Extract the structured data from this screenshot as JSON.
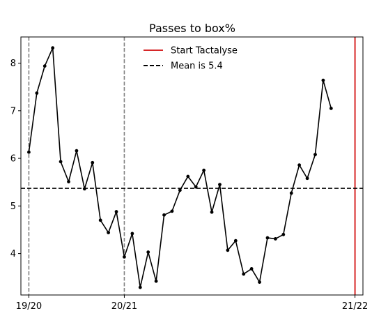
{
  "chart_data": {
    "type": "line",
    "title": "Passes to box%",
    "xlabel": "",
    "ylabel": "",
    "ylim": [
      3.13,
      8.55
    ],
    "xlim": [
      -1,
      42
    ],
    "yticks": [
      4,
      5,
      6,
      7,
      8
    ],
    "xticks": [
      {
        "x": 0,
        "label": "19/20"
      },
      {
        "x": 12,
        "label": "20/21"
      },
      {
        "x": 41,
        "label": "21/22"
      }
    ],
    "season_markers": [
      0,
      12
    ],
    "start_marker": 41,
    "mean": 5.37,
    "colors": {
      "line": "#000000",
      "mean": "#000000",
      "season": "#808080",
      "start": "#d62728"
    },
    "legend": {
      "placement": "top-center",
      "entries": [
        {
          "label": "Start Tactalyse",
          "style": "solid",
          "color": "#d62728"
        },
        {
          "label": "Mean is 5.4",
          "style": "dashed",
          "color": "#000000"
        }
      ]
    },
    "series": [
      {
        "x": [
          0,
          1,
          2,
          3,
          4,
          5,
          6,
          7,
          8,
          9,
          10,
          11,
          12,
          13,
          14,
          15,
          16,
          17,
          18,
          19,
          20,
          21,
          22,
          23,
          24,
          25,
          26,
          27,
          28,
          29,
          30,
          31,
          32,
          33,
          34,
          35,
          36,
          37,
          38,
          39
        ],
        "values": [
          6.13,
          7.37,
          7.94,
          8.32,
          5.93,
          5.51,
          6.16,
          5.36,
          5.91,
          4.7,
          4.44,
          4.88,
          3.93,
          4.42,
          3.29,
          4.03,
          3.42,
          4.81,
          4.89,
          5.33,
          5.62,
          5.4,
          5.75,
          4.87,
          5.45,
          4.07,
          4.27,
          3.57,
          3.68,
          3.4,
          4.33,
          4.31,
          4.4,
          5.27,
          5.86,
          5.58,
          6.08,
          7.64,
          7.05,
          null
        ]
      }
    ]
  }
}
